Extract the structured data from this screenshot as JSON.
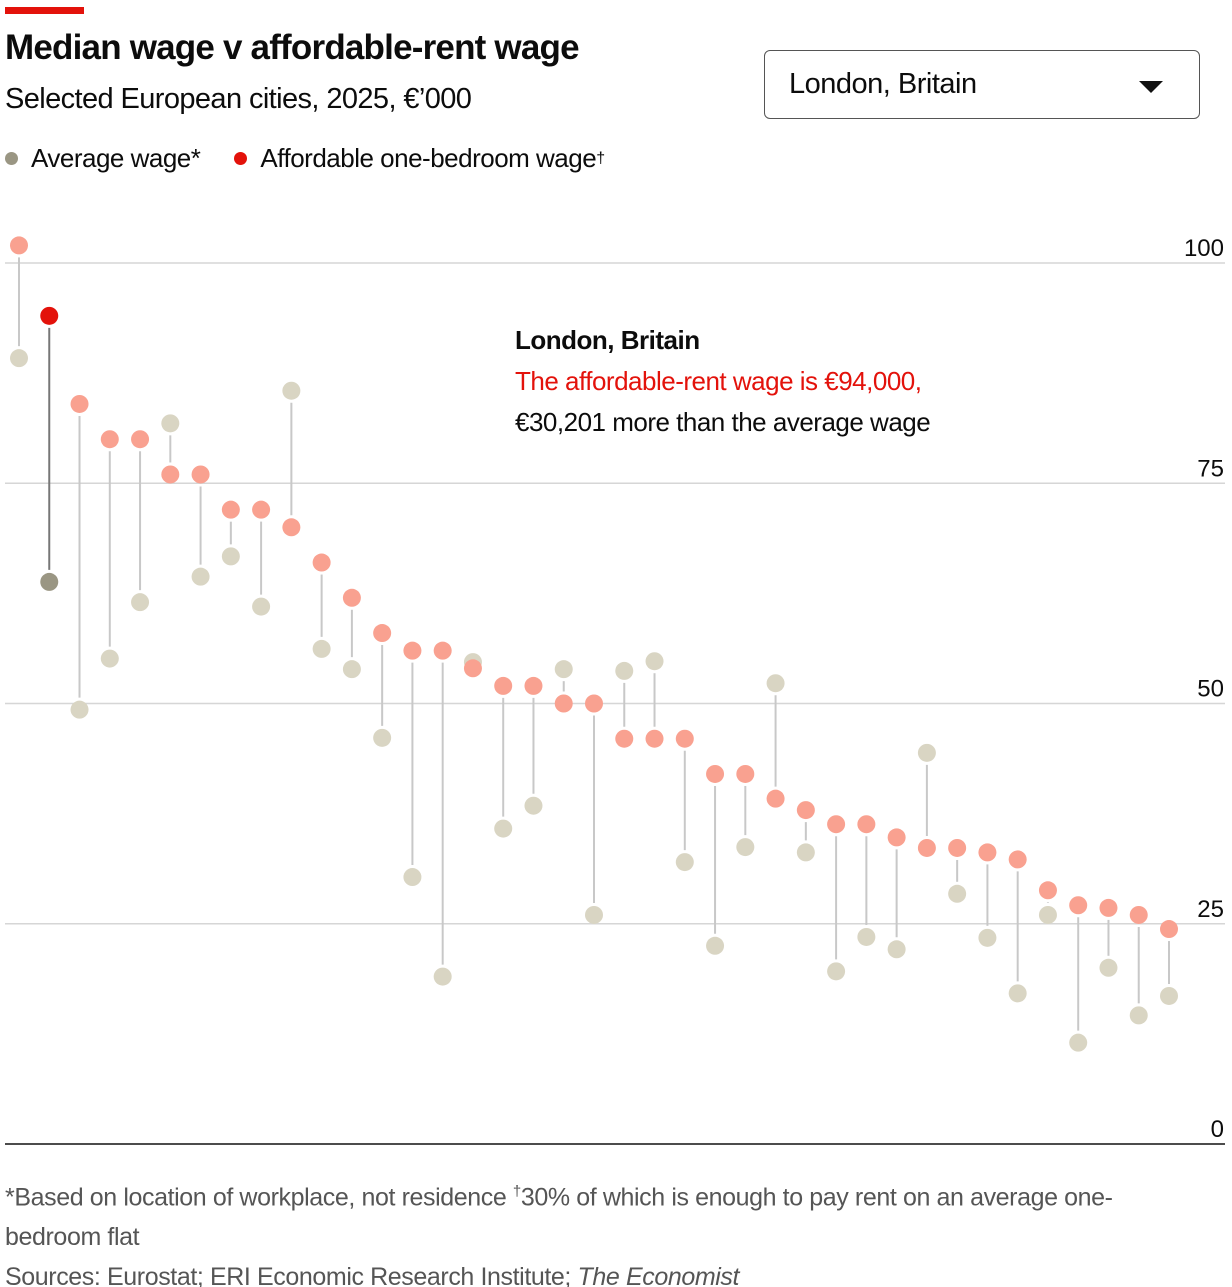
{
  "header": {
    "title": "Median wage v affordable-rent wage",
    "subtitle": "Selected European cities, 2025, €’000"
  },
  "legend": [
    {
      "label": "Average wage*",
      "color": "#9a9683"
    },
    {
      "label": "Affordable one-bedroom wage",
      "sup": "†",
      "color": "#e3120b"
    }
  ],
  "dropdown": {
    "selected": "London, Britain"
  },
  "annotation": {
    "city": "London, Britain",
    "line1": "The affordable-rent wage is €94,000,",
    "line2": "€30,201 more than the average wage"
  },
  "footer": {
    "note_a": "*Based on location of workplace, not residence ",
    "note_b_sup": "†",
    "note_b": "30% of which is enough to pay rent on an average one-bedroom flat",
    "sources_label": "Sources: Eurostat; ERI Economic Research Institute; ",
    "sources_italic": "The Economist"
  },
  "chart_data": {
    "type": "dot-range",
    "title": "Median wage v affordable-rent wage",
    "subtitle": "Selected European cities, 2025, €’000",
    "ylim": [
      0,
      100
    ],
    "yticks": [
      0,
      25,
      50,
      75,
      100
    ],
    "grid": true,
    "legend_position": "top-left",
    "highlight_index": 1,
    "colors": {
      "average": "#d9d5c3",
      "affordable": "#f9a190",
      "average_highlight": "#9a9683",
      "affordable_highlight": "#e3120b"
    },
    "series": [
      {
        "name": "Average wage*",
        "values": [
          89.2,
          63.8,
          49.3,
          55.1,
          61.5,
          81.8,
          64.4,
          66.7,
          61.0,
          85.5,
          56.2,
          53.9,
          46.1,
          30.3,
          19.0,
          54.7,
          35.8,
          38.4,
          53.9,
          26.0,
          53.7,
          54.8,
          32.0,
          22.5,
          33.7,
          52.3,
          33.1,
          19.6,
          23.5,
          22.1,
          44.4,
          28.4,
          23.4,
          17.1,
          26.0,
          11.5,
          20.0,
          14.6,
          16.8
        ]
      },
      {
        "name": "Affordable one-bedroom wage†",
        "values": [
          102,
          94,
          84,
          80,
          80,
          76,
          76,
          72,
          72,
          70,
          66,
          62,
          58,
          56,
          56,
          54,
          52,
          52,
          50,
          50,
          46,
          46,
          46,
          42,
          42,
          39.2,
          37.9,
          36.3,
          36.3,
          34.8,
          33.6,
          33.6,
          33.1,
          32.3,
          28.8,
          27.1,
          26.8,
          26.0,
          24.4
        ]
      }
    ]
  }
}
